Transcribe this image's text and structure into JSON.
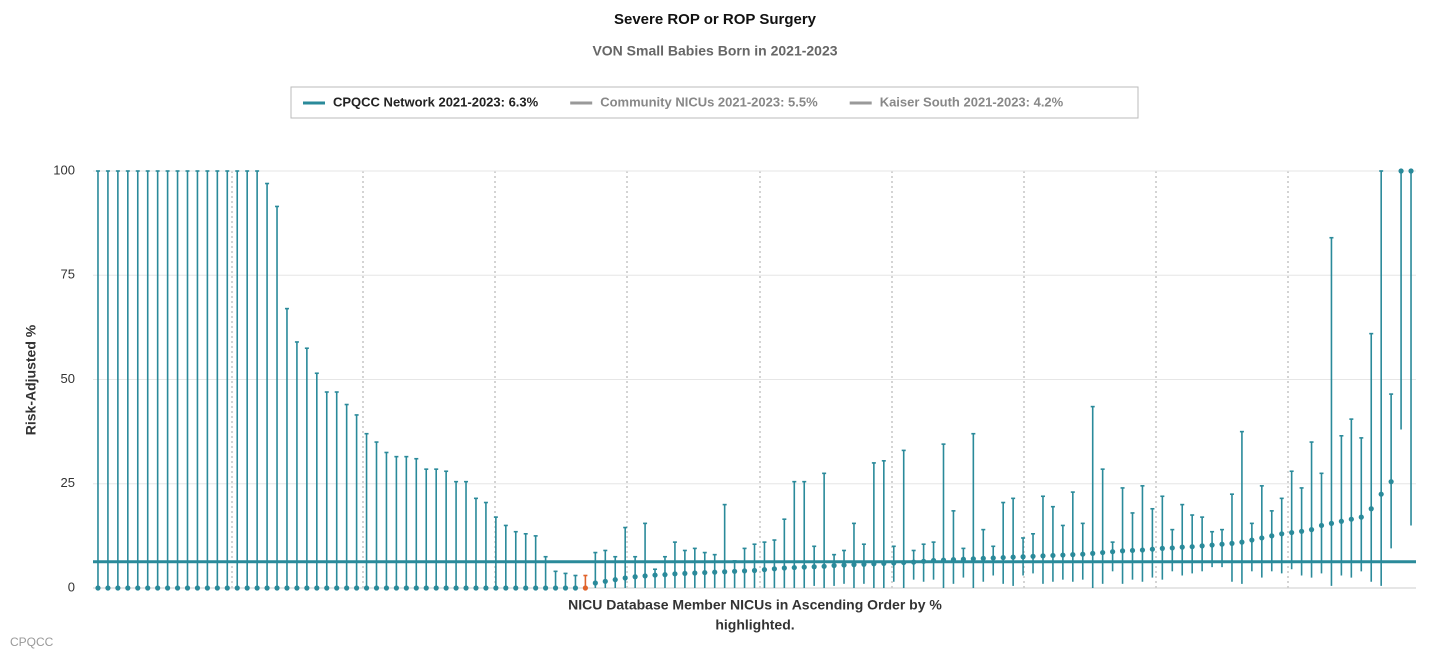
{
  "chart_data": {
    "type": "errorbar",
    "title": "Severe ROP or ROP Surgery",
    "subtitle": "VON Small Babies Born in 2021-2023",
    "ylabel": "Risk-Adjusted %",
    "xlabel": [
      "NICU Database Member NICUs in Ascending Order by %",
      "highlighted."
    ],
    "credit": "CPQCC",
    "color": "#2a8a9a",
    "highlight_color": "#e0622a",
    "highlight_index": 49,
    "ylim": [
      0,
      100
    ],
    "yticks": [
      0,
      25,
      50,
      75,
      100
    ],
    "grid": true,
    "reference_lines": [
      {
        "name": "CPQCC Network 2021-2023: 6.3%",
        "value": 6.3,
        "color": "#2a8a9a",
        "visible": true
      },
      {
        "name": "Community NICUs 2021-2023: 5.5%",
        "value": 5.5,
        "color": "#8c8c8c",
        "visible": false
      },
      {
        "name": "Kaiser South 2021-2023: 4.2%",
        "value": 4.2,
        "color": "#8c8c8c",
        "visible": false
      }
    ],
    "values": [
      0,
      0,
      0,
      0,
      0,
      0,
      0,
      0,
      0,
      0,
      0,
      0,
      0,
      0,
      0,
      0,
      0,
      0,
      0,
      0,
      0,
      0,
      0,
      0,
      0,
      0,
      0,
      0,
      0,
      0,
      0,
      0,
      0,
      0,
      0,
      0,
      0,
      0,
      0,
      0,
      0,
      0,
      0,
      0,
      0,
      0,
      0,
      0,
      0,
      0,
      1.2,
      1.6,
      2.0,
      2.4,
      2.7,
      2.9,
      3.1,
      3.2,
      3.4,
      3.5,
      3.6,
      3.7,
      3.8,
      3.9,
      4.0,
      4.1,
      4.2,
      4.4,
      4.6,
      4.8,
      4.9,
      5.0,
      5.1,
      5.2,
      5.4,
      5.5,
      5.6,
      5.7,
      5.8,
      5.9,
      6.0,
      6.1,
      6.2,
      6.4,
      6.6,
      6.7,
      6.8,
      6.9,
      7.0,
      7.1,
      7.2,
      7.3,
      7.4,
      7.5,
      7.6,
      7.7,
      7.8,
      7.9,
      8.0,
      8.1,
      8.3,
      8.5,
      8.7,
      8.9,
      9.0,
      9.1,
      9.3,
      9.5,
      9.6,
      9.8,
      9.9,
      10.1,
      10.3,
      10.5,
      10.7,
      11.0,
      11.5,
      12.0,
      12.5,
      13.0,
      13.3,
      13.6,
      14.0,
      15.0,
      15.5,
      16.0,
      16.5,
      17.0,
      19.0,
      22.5,
      25.5,
      100,
      100
    ],
    "lower": [
      0,
      0,
      0,
      0,
      0,
      0,
      0,
      0,
      0,
      0,
      0,
      0,
      0,
      0,
      0,
      0,
      0,
      0,
      0,
      0,
      0,
      0,
      0,
      0,
      0,
      0,
      0,
      0,
      0,
      0,
      0,
      0,
      0,
      0,
      0,
      0,
      0,
      0,
      0,
      0,
      0,
      0,
      0,
      0,
      0,
      0,
      0,
      0,
      0,
      0,
      0,
      0,
      0,
      0,
      0,
      0,
      0,
      0,
      0,
      0,
      0,
      0,
      0,
      0,
      0,
      0,
      0,
      0,
      0,
      0,
      0,
      0,
      0.5,
      0,
      0.5,
      1,
      0,
      1,
      0,
      0,
      1.5,
      0,
      2,
      1.5,
      2,
      0,
      1,
      2.5,
      0,
      1.5,
      3,
      1,
      0.5,
      3,
      3.5,
      1,
      1.5,
      2,
      1.5,
      2,
      0,
      1,
      4,
      1,
      2,
      1.5,
      2.5,
      2,
      4,
      3,
      3.5,
      4,
      5,
      5,
      1.5,
      1,
      4,
      2.5,
      4,
      3.5,
      4.5,
      3,
      2.5,
      3.5,
      0.5,
      3,
      2.5,
      4,
      1.5,
      0.5,
      9.5,
      38,
      15
    ],
    "upper": [
      100,
      100,
      100,
      100,
      100,
      100,
      100,
      100,
      100,
      100,
      100,
      100,
      100,
      100,
      100,
      100,
      100,
      97,
      91.5,
      67,
      59,
      57.5,
      51.5,
      47,
      47,
      44,
      41.5,
      37,
      35,
      32.5,
      31.5,
      31.5,
      31,
      28.5,
      28.5,
      28,
      25.5,
      25.5,
      21.5,
      20.5,
      17,
      15,
      13.5,
      13,
      12.5,
      7.5,
      4,
      3.5,
      3,
      3,
      8.5,
      9,
      7.5,
      14.5,
      7.5,
      15.5,
      4.5,
      7.5,
      11,
      9,
      9.5,
      8.5,
      8,
      20,
      6.5,
      9.5,
      10.5,
      11,
      11.5,
      16.5,
      25.5,
      25.5,
      10,
      27.5,
      8,
      9,
      15.5,
      10.5,
      30,
      30.5,
      10,
      33,
      9,
      10.5,
      11,
      34.5,
      18.5,
      9.5,
      37,
      14,
      10,
      20.5,
      21.5,
      12,
      13,
      22,
      19.5,
      15,
      23,
      15.5,
      43.5,
      28.5,
      11,
      24,
      18,
      24.5,
      19,
      22,
      14,
      20,
      17.5,
      17,
      13.5,
      14,
      22.5,
      37.5,
      15.5,
      24.5,
      18.5,
      21.5,
      28,
      24,
      35,
      27.5,
      84,
      36.5,
      40.5,
      36,
      61,
      100,
      46.5,
      100,
      100
    ]
  }
}
